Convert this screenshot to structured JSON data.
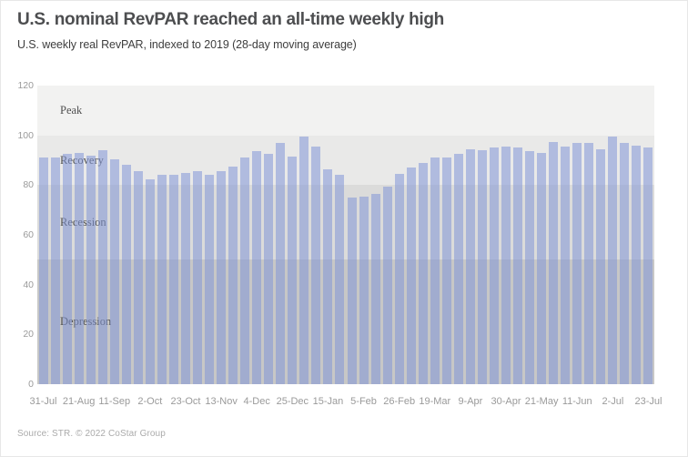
{
  "header": {
    "title": "U.S. nominal RevPAR reached an all-time weekly high",
    "subtitle": "U.S. weekly real RevPAR, indexed to 2019 (28-day moving average)"
  },
  "footer": {
    "source": "Source: STR. © 2022 CoStar Group"
  },
  "chart_data": {
    "type": "bar",
    "title": "U.S. nominal RevPAR reached an all-time weekly high",
    "subtitle": "U.S. weekly real RevPAR, indexed to 2019 (28-day moving average)",
    "ylim": [
      0,
      120
    ],
    "y_ticks": [
      0,
      20,
      40,
      60,
      80,
      100,
      120
    ],
    "x_tick_labels": [
      "31-Jul",
      "21-Aug",
      "11-Sep",
      "2-Oct",
      "23-Oct",
      "13-Nov",
      "4-Dec",
      "25-Dec",
      "15-Jan",
      "5-Feb",
      "26-Feb",
      "19-Mar",
      "9-Apr",
      "30-Apr",
      "21-May",
      "11-Jun",
      "2-Jul",
      "23-Jul"
    ],
    "x_tick_interval": 3,
    "values": [
      91,
      91,
      92.5,
      93,
      92,
      94,
      90.5,
      88,
      85.5,
      82.5,
      84,
      84,
      85,
      85.5,
      84,
      85.5,
      87.5,
      91,
      93.5,
      92.5,
      97,
      91.5,
      99.5,
      95.5,
      86.5,
      84,
      75,
      75.5,
      76.5,
      79.5,
      84.5,
      87,
      89,
      91,
      91,
      92.5,
      94.5,
      94,
      95,
      95.5,
      95,
      93.5,
      93,
      97.5,
      95.5,
      97,
      97,
      94.5,
      99.5,
      97,
      96,
      95
    ],
    "bar_color": "rgba(130,150,215,0.55)",
    "grid": false,
    "legend": false,
    "zones": [
      {
        "label": "Peak",
        "from": 100,
        "to": 120,
        "color": "#f2f2f1"
      },
      {
        "label": "Recovery",
        "from": 80,
        "to": 100,
        "color": "#e9e9e8"
      },
      {
        "label": "Recession",
        "from": 50,
        "to": 80,
        "color": "#dbdbda"
      },
      {
        "label": "Depression",
        "from": 0,
        "to": 50,
        "color": "#c7c7c6"
      }
    ]
  }
}
